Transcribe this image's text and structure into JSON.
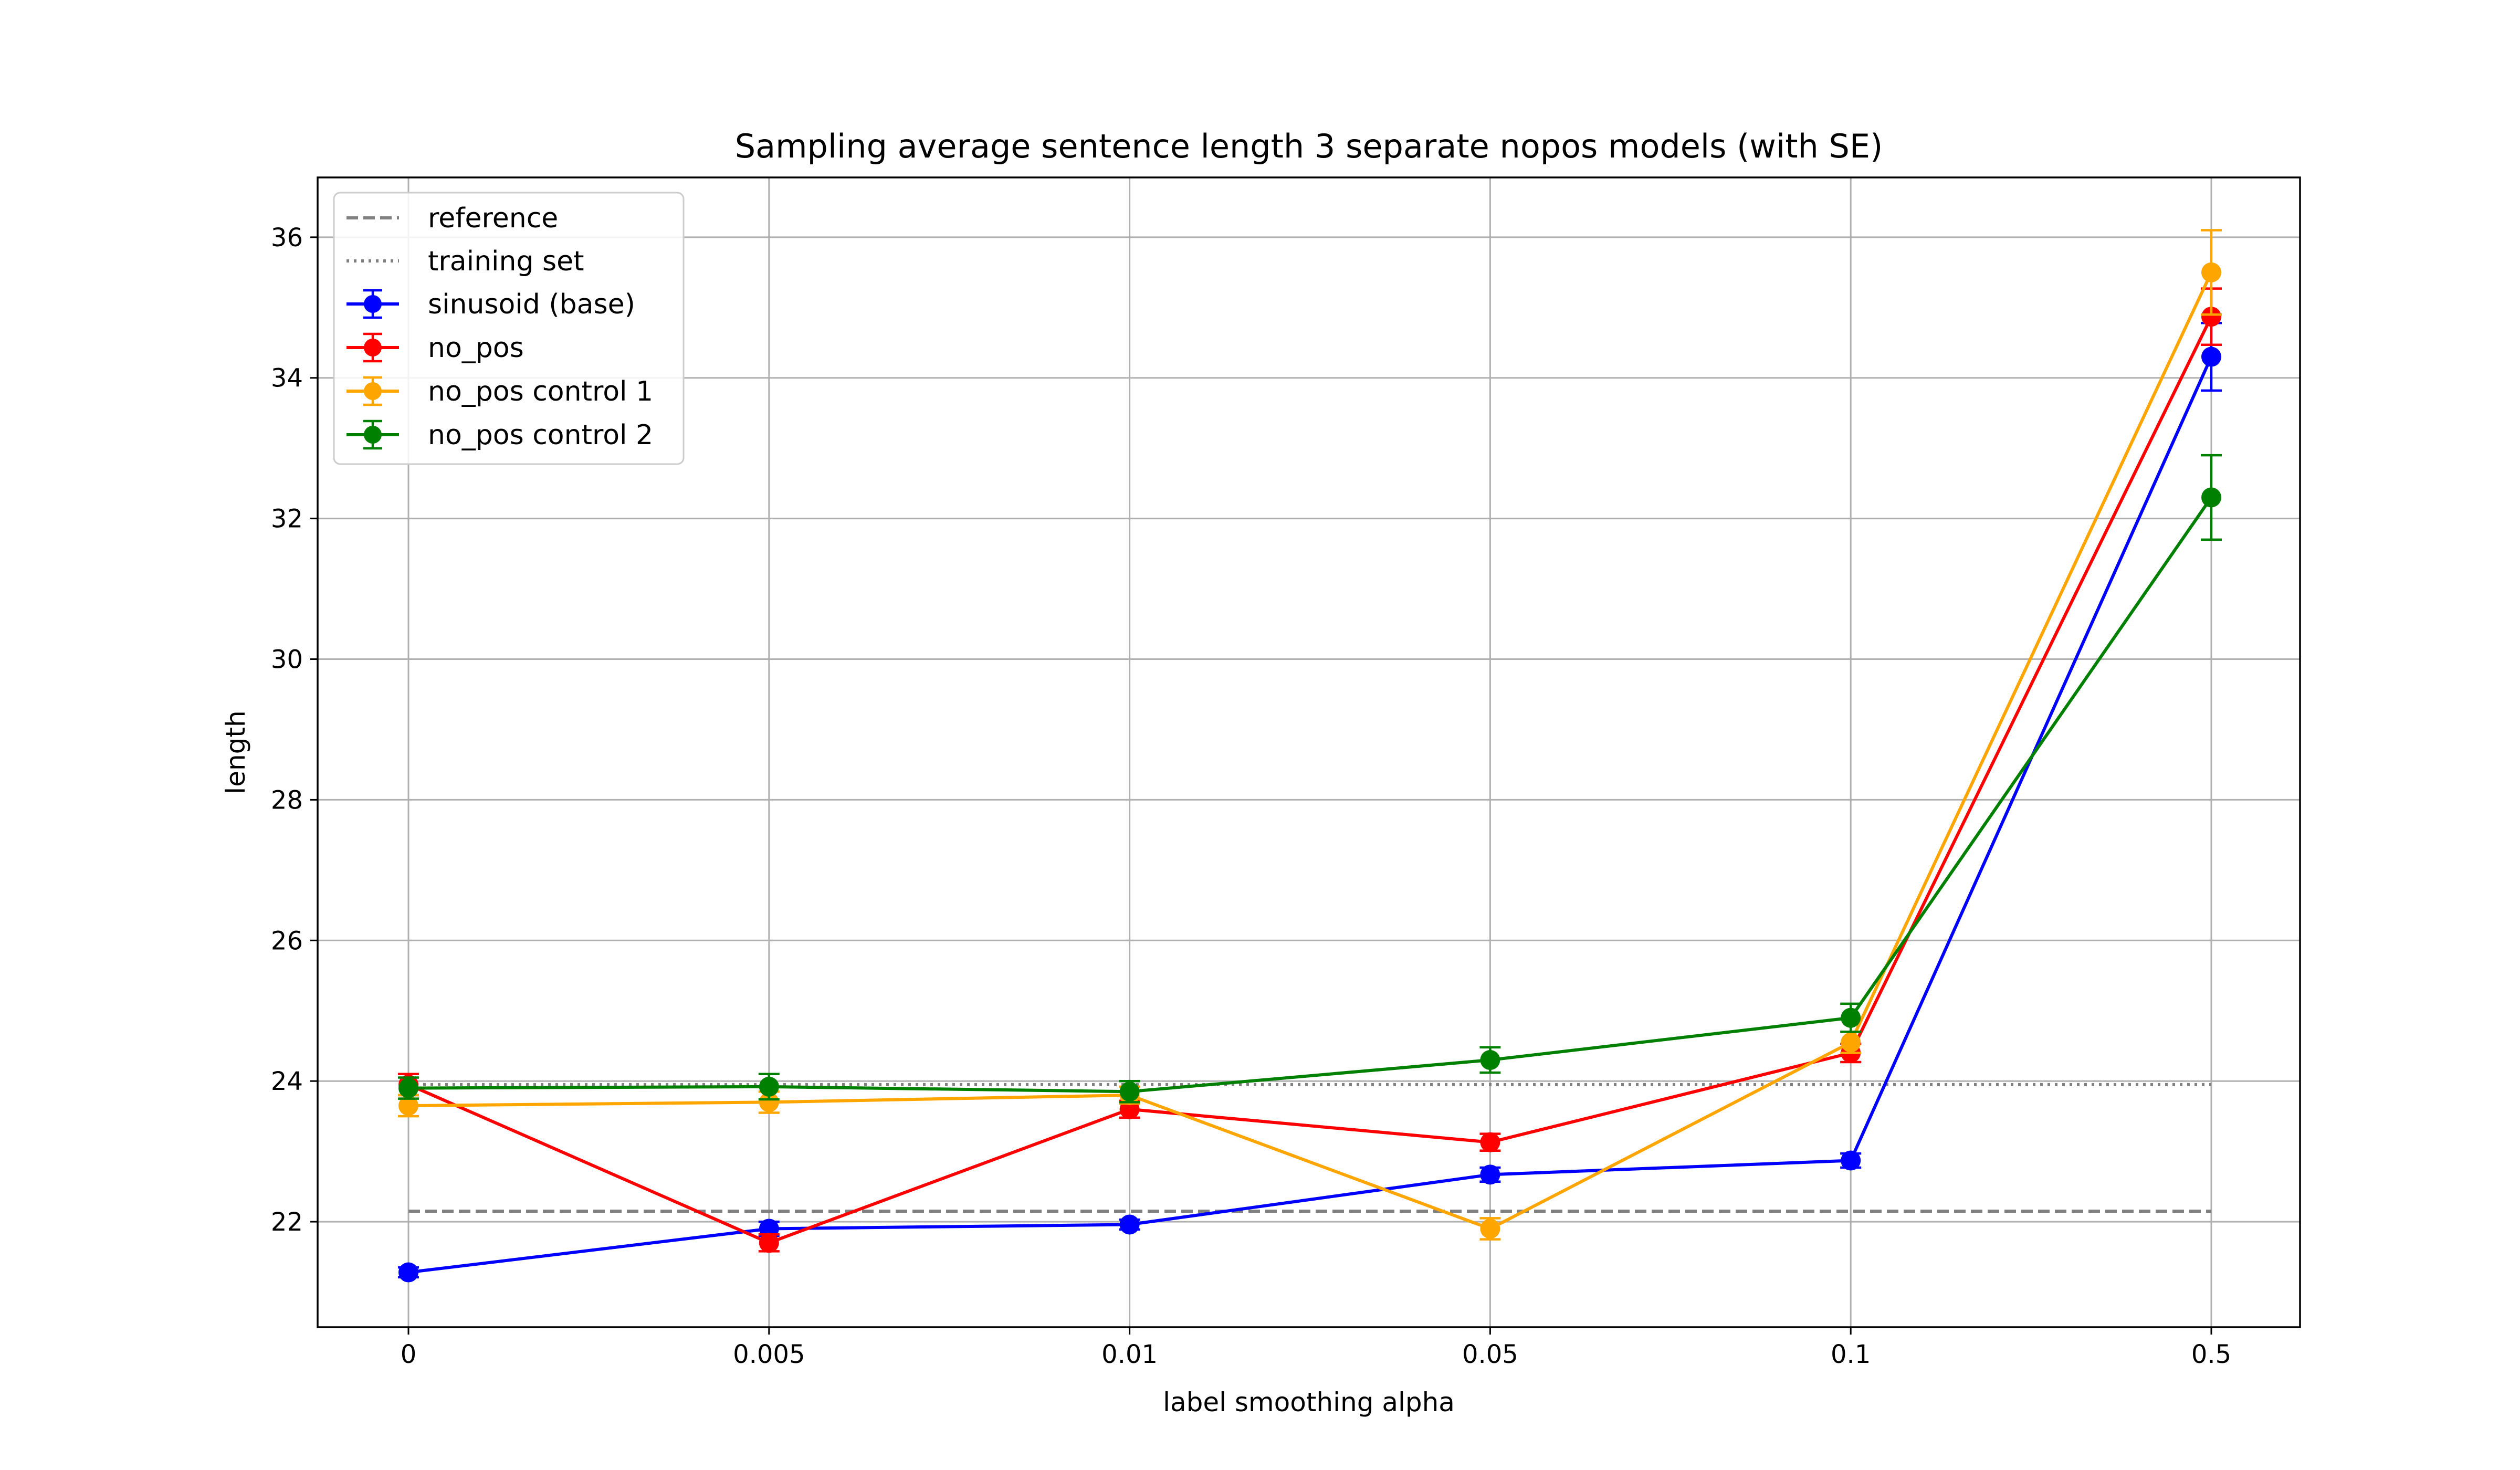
{
  "chart_data": {
    "type": "line",
    "title": "Sampling average sentence length 3 separate nopos models (with SE)",
    "xlabel": "label smoothing alpha",
    "ylabel": "length",
    "categories": [
      "0",
      "0.005",
      "0.01",
      "0.05",
      "0.1",
      "0.5"
    ],
    "ylim": [
      20.5,
      36.85
    ],
    "yticks": [
      22,
      24,
      26,
      28,
      30,
      32,
      34,
      36
    ],
    "grid": true,
    "legend_position": "upper-left",
    "reference_lines": [
      {
        "name": "reference",
        "value": 22.15,
        "style": "dashed",
        "color": "#808080"
      },
      {
        "name": "training set",
        "value": 23.95,
        "style": "dotted",
        "color": "#808080"
      }
    ],
    "series": [
      {
        "name": "sinusoid (base)",
        "color": "#0000ff",
        "values": [
          21.28,
          21.9,
          21.96,
          22.67,
          22.87,
          34.3
        ],
        "errors": [
          0.07,
          0.1,
          0.07,
          0.1,
          0.1,
          0.48
        ]
      },
      {
        "name": "no_pos",
        "color": "#ff0000",
        "values": [
          23.95,
          21.7,
          23.6,
          23.13,
          24.4,
          34.87
        ],
        "errors": [
          0.15,
          0.12,
          0.12,
          0.12,
          0.13,
          0.4
        ]
      },
      {
        "name": "no_pos control 1",
        "color": "#ffa500",
        "values": [
          23.65,
          23.7,
          23.8,
          21.9,
          24.55,
          35.5
        ],
        "errors": [
          0.15,
          0.15,
          0.12,
          0.15,
          0.15,
          0.6
        ]
      },
      {
        "name": "no_pos control 2",
        "color": "#008000",
        "values": [
          23.9,
          23.92,
          23.85,
          24.3,
          24.9,
          32.3
        ],
        "errors": [
          0.15,
          0.18,
          0.15,
          0.18,
          0.2,
          0.6
        ]
      }
    ]
  }
}
